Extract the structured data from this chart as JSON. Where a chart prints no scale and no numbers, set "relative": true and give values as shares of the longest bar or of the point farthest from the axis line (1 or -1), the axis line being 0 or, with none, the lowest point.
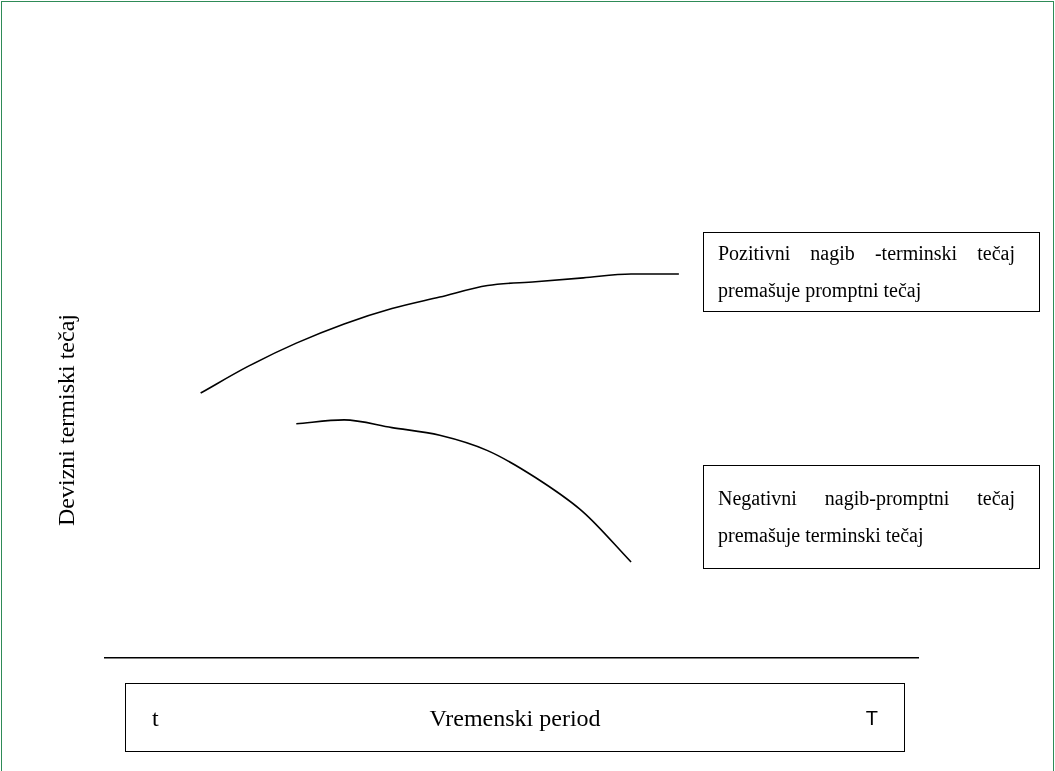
{
  "chart_data": {
    "type": "line",
    "relative": true,
    "tick_labels": false,
    "xlabel": "Vremenski period",
    "ylabel": "Devizni termiski tečaj",
    "annotations": [
      "Pozitivni nagib -terminski tečaj premašuje promptni tečaj",
      "Negativni nagib-promptni tečaj premašuje terminski tečaj",
      "t",
      "T"
    ],
    "categories": [
      null,
      null,
      null,
      null,
      null,
      null,
      null,
      null,
      null,
      null,
      null,
      null,
      null,
      null,
      null,
      null,
      null,
      null
    ],
    "series": [
      {
        "color": "#000000",
        "values": [
          null,
          null,
          0.69,
          0.76,
          0.82,
          0.87,
          0.91,
          0.94,
          0.97,
          0.98,
          0.99,
          1,
          1,
          null,
          null,
          null,
          null,
          null
        ]
      },
      {
        "color": "#000000",
        "values": [
          null,
          null,
          null,
          null,
          0.61,
          0.62,
          0.6,
          0.58,
          0.54,
          0.47,
          0.38,
          0.25,
          null,
          null,
          null,
          null,
          null,
          null
        ]
      }
    ]
  }
}
